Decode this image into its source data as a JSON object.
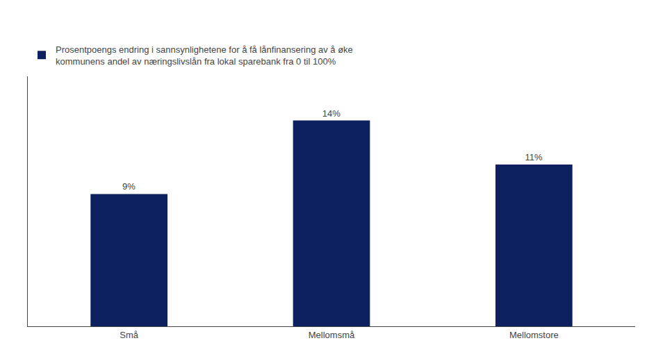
{
  "chart_data": {
    "type": "bar",
    "categories": [
      "Små",
      "Mellomsmå",
      "Mellomstore"
    ],
    "series": [
      {
        "name": "Prosentpoengs endring i sannsynlighetene for å få lånfinansering av å øke\nkommunens andel av næringslivslån fra lokal sparebank fra 0 til 100%",
        "color": "#0d2060",
        "values": [
          9,
          14,
          11
        ],
        "value_labels": [
          "9%",
          "14%",
          "11%"
        ]
      }
    ],
    "ylim": [
      0,
      17
    ],
    "data_labels": true,
    "tick_labels": "x",
    "grid": false,
    "legend": "upper left"
  }
}
